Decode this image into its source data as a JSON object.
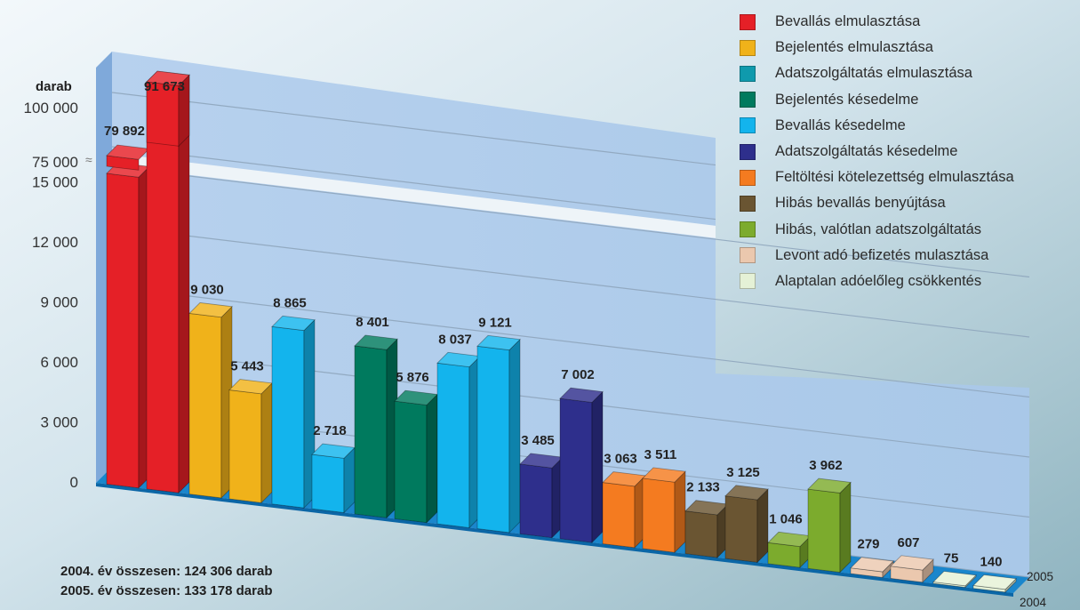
{
  "chart_data": {
    "type": "bar",
    "ylabel": "darab",
    "yticks": [
      "0",
      "3 000",
      "6 000",
      "9 000",
      "12 000",
      "15 000",
      "75 000",
      "100 000"
    ],
    "years": [
      "2004",
      "2005"
    ],
    "categories": [
      "Bevallás elmulasztása",
      "Bejelentés elmulasztása",
      "Adatszolgáltatás elmulasztása",
      "Bejelentés késedelme",
      "Bevallás késedelme",
      "Adatszolgáltatás késedelme",
      "Feltöltési kötelezettség elmulasztása",
      "Hibás bevallás benyújtása",
      "Hibás, valótlan adatszolgáltatás",
      "Levont adó befizetés mulasztása",
      "Alaptalan adóelőleg csökkentés"
    ],
    "colors": [
      "#e52027",
      "#f0b21a",
      "#0f9aad",
      "#007a5e",
      "#13b4ed",
      "#2e2f8c",
      "#f47b20",
      "#6a5532",
      "#7cab2d",
      "#ebc8ae",
      "#e5f1d6"
    ],
    "series": [
      {
        "name": "2004",
        "values": [
          79892,
          9030,
          8865,
          8401,
          8037,
          3485,
          3063,
          2133,
          1046,
          279,
          75
        ]
      },
      {
        "name": "2005",
        "values": [
          91673,
          5443,
          2718,
          5876,
          9121,
          7002,
          3511,
          3125,
          3962,
          607,
          140
        ]
      }
    ],
    "value_labels": {
      "2004": [
        "79 892",
        "9 030",
        "8 865",
        "8 401",
        "8 037",
        "3 485",
        "3 063",
        "2 133",
        "1 046",
        "279",
        "75"
      ],
      "2005": [
        "91 673",
        "5 443",
        "2 718",
        "5 876",
        "9 121",
        "7 002",
        "3 511",
        "3 125",
        "3 962",
        "607",
        "140"
      ]
    }
  },
  "totals": {
    "line_2004": "2004. év összesen: 124 306 darab",
    "line_2005": "2005. év összesen: 133 178 darab"
  }
}
